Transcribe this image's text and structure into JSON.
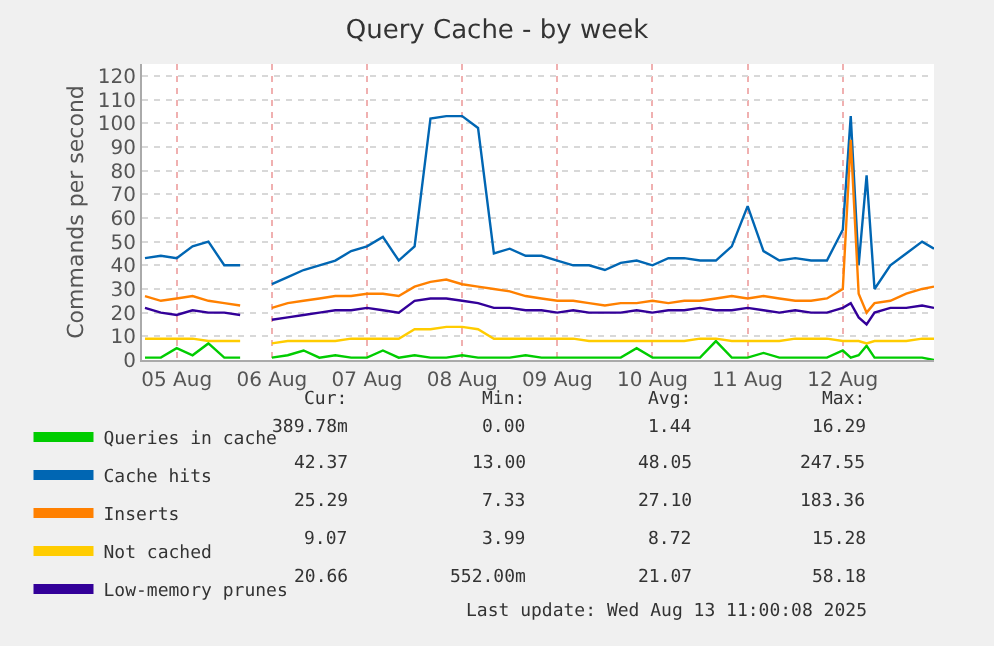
{
  "chart_data": {
    "type": "line",
    "title": "Query Cache - by week",
    "ylabel": "Commands per second",
    "x": [
      "2025-08-05T04:00",
      "2025-08-05T08:00",
      "2025-08-05T12:00",
      "2025-08-05T16:00",
      "2025-08-05T20:00",
      "2025-08-06T00:00",
      "2025-08-06T04:00",
      "2025-08-06T08:00",
      "2025-08-06T12:00",
      "2025-08-06T16:00",
      "2025-08-06T20:00",
      "2025-08-07T00:00",
      "2025-08-07T04:00",
      "2025-08-07T08:00",
      "2025-08-07T12:00",
      "2025-08-07T16:00",
      "2025-08-07T20:00",
      "2025-08-08T00:00",
      "2025-08-08T04:00",
      "2025-08-08T08:00",
      "2025-08-08T12:00",
      "2025-08-08T16:00",
      "2025-08-08T20:00",
      "2025-08-09T00:00",
      "2025-08-09T04:00",
      "2025-08-09T08:00",
      "2025-08-09T12:00",
      "2025-08-09T16:00",
      "2025-08-09T20:00",
      "2025-08-10T00:00",
      "2025-08-10T04:00",
      "2025-08-10T08:00",
      "2025-08-10T12:00",
      "2025-08-10T16:00",
      "2025-08-10T20:00",
      "2025-08-11T00:00",
      "2025-08-11T04:00",
      "2025-08-11T08:00",
      "2025-08-11T12:00",
      "2025-08-11T16:00",
      "2025-08-11T20:00",
      "2025-08-12T00:00",
      "2025-08-12T04:00",
      "2025-08-12T08:00",
      "2025-08-12T12:00",
      "2025-08-12T14:00",
      "2025-08-12T16:00",
      "2025-08-12T18:00",
      "2025-08-12T20:00",
      "2025-08-13T00:00",
      "2025-08-13T04:00",
      "2025-08-13T08:00",
      "2025-08-13T11:00"
    ],
    "series": [
      {
        "name": "Queries in cache",
        "color": "#00cc00",
        "values": [
          1,
          1,
          5,
          2,
          7,
          1,
          1,
          null,
          1,
          2,
          4,
          1,
          2,
          1,
          1,
          4,
          1,
          2,
          1,
          1,
          2,
          1,
          1,
          1,
          2,
          1,
          1,
          1,
          1,
          1,
          1,
          5,
          1,
          1,
          1,
          1,
          8,
          1,
          1,
          3,
          1,
          1,
          1,
          1,
          4,
          1,
          2,
          6,
          1,
          1,
          1,
          1,
          0
        ]
      },
      {
        "name": "Cache hits",
        "color": "#0066b3",
        "values": [
          43,
          44,
          43,
          48,
          50,
          40,
          40,
          null,
          32,
          35,
          38,
          40,
          42,
          46,
          48,
          52,
          42,
          48,
          102,
          103,
          103,
          98,
          45,
          47,
          44,
          44,
          42,
          40,
          40,
          38,
          41,
          42,
          40,
          43,
          43,
          42,
          42,
          48,
          65,
          46,
          42,
          43,
          42,
          42,
          55,
          103,
          40,
          78,
          30,
          40,
          45,
          50,
          47
        ]
      },
      {
        "name": "Inserts",
        "color": "#ff8000",
        "values": [
          27,
          25,
          26,
          27,
          25,
          24,
          23,
          null,
          22,
          24,
          25,
          26,
          27,
          27,
          28,
          28,
          27,
          31,
          33,
          34,
          32,
          31,
          30,
          29,
          27,
          26,
          25,
          25,
          24,
          23,
          24,
          24,
          25,
          24,
          25,
          25,
          26,
          27,
          26,
          27,
          26,
          25,
          25,
          26,
          30,
          93,
          28,
          20,
          24,
          25,
          28,
          30,
          31
        ]
      },
      {
        "name": "Not cached",
        "color": "#ffcc00",
        "values": [
          9,
          9,
          9,
          9,
          8,
          8,
          8,
          null,
          7,
          8,
          8,
          8,
          8,
          9,
          9,
          9,
          9,
          13,
          13,
          14,
          14,
          13,
          9,
          9,
          9,
          9,
          9,
          9,
          8,
          8,
          8,
          8,
          8,
          8,
          8,
          9,
          9,
          8,
          8,
          8,
          8,
          9,
          9,
          9,
          8,
          8,
          8,
          7,
          8,
          8,
          8,
          9,
          9
        ]
      },
      {
        "name": "Low-memory prunes",
        "color": "#330099",
        "values": [
          22,
          20,
          19,
          21,
          20,
          20,
          19,
          null,
          17,
          18,
          19,
          20,
          21,
          21,
          22,
          21,
          20,
          25,
          26,
          26,
          25,
          24,
          22,
          22,
          21,
          21,
          20,
          21,
          20,
          20,
          20,
          21,
          20,
          21,
          21,
          22,
          21,
          21,
          22,
          21,
          20,
          21,
          20,
          20,
          22,
          24,
          18,
          15,
          20,
          22,
          22,
          23,
          22
        ]
      }
    ],
    "xlim": [
      "2025-08-05T03:15",
      "2025-08-13T11:00"
    ],
    "xticks": [
      {
        "value": "2025-08-05T12:00",
        "label": "05 Aug"
      },
      {
        "value": "2025-08-06T12:00",
        "label": "06 Aug"
      },
      {
        "value": "2025-08-07T12:00",
        "label": "07 Aug"
      },
      {
        "value": "2025-08-08T12:00",
        "label": "08 Aug"
      },
      {
        "value": "2025-08-09T12:00",
        "label": "09 Aug"
      },
      {
        "value": "2025-08-10T12:00",
        "label": "10 Aug"
      },
      {
        "value": "2025-08-11T12:00",
        "label": "11 Aug"
      },
      {
        "value": "2025-08-12T12:00",
        "label": "12 Aug"
      }
    ],
    "ylim": [
      0,
      125
    ],
    "yticks": [
      0,
      10,
      20,
      30,
      40,
      50,
      60,
      70,
      80,
      90,
      100,
      110,
      120
    ],
    "grid": true,
    "legend": "bottom",
    "marker": "none",
    "line_style": "solid",
    "annotations": [
      "Cur:",
      "Min:",
      "Avg:",
      "Max:",
      "389.78m",
      "0.00",
      "1.44",
      "16.29",
      "42.37",
      "13.00",
      "48.05",
      "247.55",
      "25.29",
      "7.33",
      "27.10",
      "183.36",
      "9.07",
      "3.99",
      "8.72",
      "15.28",
      "20.66",
      "552.00m",
      "21.07",
      "58.18",
      "Last update: Wed Aug 13 11:00:08 2025"
    ]
  }
}
